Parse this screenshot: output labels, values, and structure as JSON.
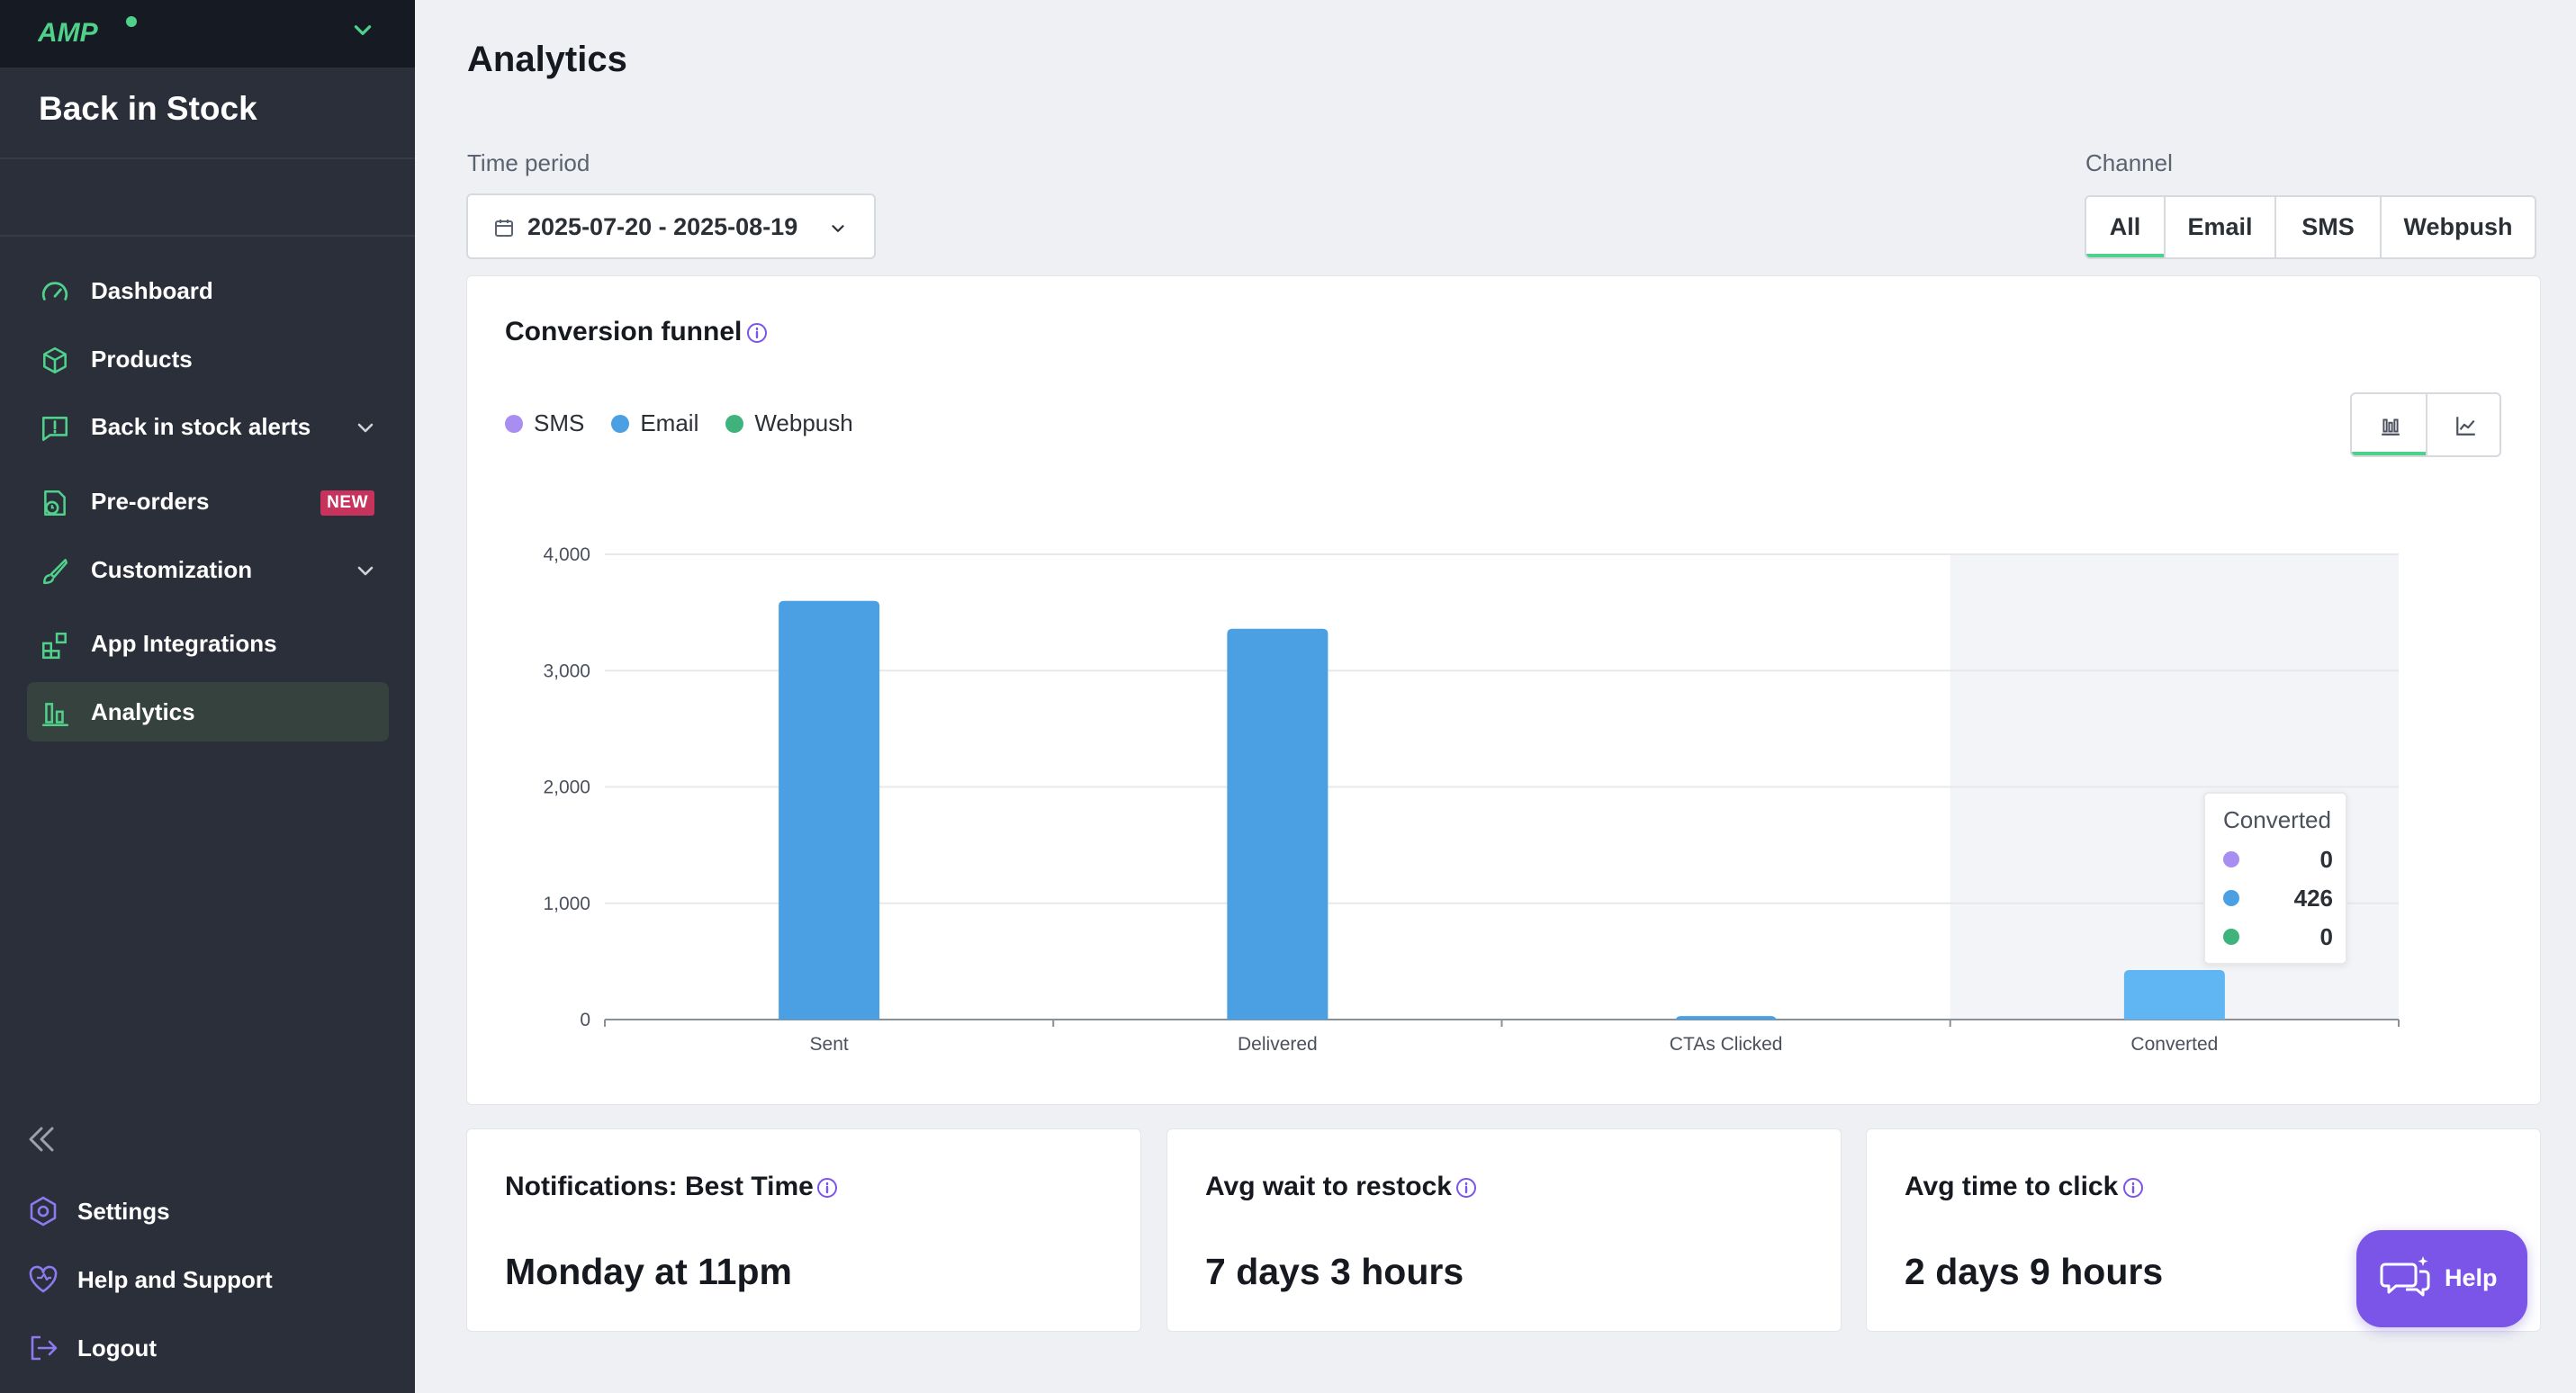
{
  "sidebar": {
    "logo_text": "AMP",
    "app_title": "Back in Stock",
    "nav": [
      {
        "label": "Dashboard",
        "icon": "gauge-icon"
      },
      {
        "label": "Products",
        "icon": "box-icon"
      },
      {
        "label": "Back in stock alerts",
        "icon": "alert-message-icon"
      },
      {
        "label": "Pre-orders",
        "icon": "preorder-icon",
        "badge": "NEW"
      },
      {
        "label": "Customization",
        "icon": "paint-brush-icon"
      },
      {
        "label": "App Integrations",
        "icon": "integrations-icon"
      },
      {
        "label": "Analytics",
        "icon": "bar-chart-icon",
        "active": true
      }
    ],
    "footer": [
      {
        "label": "Settings",
        "icon": "settings-icon"
      },
      {
        "label": "Help and Support",
        "icon": "heart-help-icon"
      },
      {
        "label": "Logout",
        "icon": "logout-icon"
      }
    ]
  },
  "main": {
    "title": "Analytics",
    "time_period_label": "Time period",
    "time_period_value": "2025-07-20 - 2025-08-19",
    "channel_label": "Channel",
    "channels": [
      "All",
      "Email",
      "SMS",
      "Webpush"
    ],
    "channel_selected": "All"
  },
  "funnel": {
    "title": "Conversion funnel",
    "legend": [
      {
        "name": "SMS",
        "color": "#a98ef2"
      },
      {
        "name": "Email",
        "color": "#4aa0e3"
      },
      {
        "name": "Webpush",
        "color": "#3fb37b"
      }
    ],
    "tooltip": {
      "title": "Converted",
      "rows": [
        {
          "color": "#a98ef2",
          "value": "0"
        },
        {
          "color": "#4aa0e3",
          "value": "426"
        },
        {
          "color": "#3fb37b",
          "value": "0"
        }
      ]
    }
  },
  "chart_data": {
    "type": "bar",
    "categories": [
      "Sent",
      "Delivered",
      "CTAs Clicked",
      "Converted"
    ],
    "series": [
      {
        "name": "SMS",
        "values": [
          0,
          0,
          0,
          0
        ],
        "color": "#a98ef2"
      },
      {
        "name": "Email",
        "values": [
          3600,
          3360,
          30,
          426
        ],
        "color": "#4aa0e3"
      },
      {
        "name": "Webpush",
        "values": [
          0,
          0,
          0,
          0
        ],
        "color": "#3fb37b"
      }
    ],
    "ylim": [
      0,
      4000
    ],
    "yticks": [
      0,
      1000,
      2000,
      3000,
      4000
    ],
    "ytick_labels": [
      "0",
      "1,000",
      "2,000",
      "3,000",
      "4,000"
    ],
    "highlight_category": "Converted",
    "grid": true
  },
  "stats": [
    {
      "title": "Notifications: Best Time",
      "value": "Monday at 11pm"
    },
    {
      "title": "Avg wait to restock",
      "value": "7 days 3 hours"
    },
    {
      "title": "Avg time to click",
      "value": "2 days 9 hours"
    }
  ],
  "help_button": {
    "label": "Help"
  },
  "colors": {
    "sidebar_bg": "#2a2f3a",
    "accent_green": "#4fd18b",
    "help_purple": "#7b55e8",
    "new_badge": "#c8335e"
  }
}
